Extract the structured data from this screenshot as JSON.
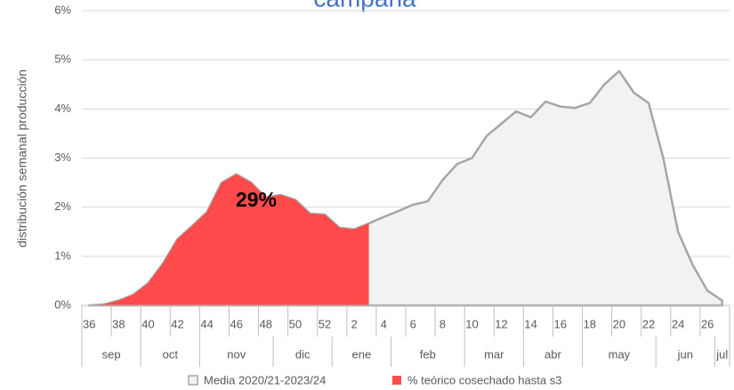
{
  "chart_data": {
    "type": "area",
    "title": "campaña",
    "y_label": "distribución semanal producción",
    "categories": [
      "36",
      null,
      "38",
      null,
      "40",
      null,
      "42",
      null,
      "44",
      null,
      "46",
      null,
      "48",
      null,
      "50",
      null,
      "52",
      null,
      "2",
      null,
      "4",
      null,
      "6",
      null,
      "8",
      null,
      "10",
      null,
      "12",
      null,
      "14",
      null,
      "16",
      null,
      "18",
      null,
      "20",
      null,
      "22",
      null,
      "24",
      null,
      "26",
      null
    ],
    "months": [
      "sep",
      "oct",
      "nov",
      "dic",
      "ene",
      "feb",
      "mar",
      "abr",
      "may",
      "jun",
      "jul"
    ],
    "series": [
      {
        "name": "Media 2020/21-2023/24",
        "color": "#a6a6a6",
        "fill": "#f2f2f2",
        "values": [
          0,
          0.02,
          0.1,
          0.22,
          0.45,
          0.85,
          1.35,
          1.62,
          1.9,
          2.5,
          2.67,
          2.5,
          2.2,
          2.25,
          2.15,
          1.87,
          1.85,
          1.58,
          1.55,
          1.67,
          1.8,
          1.92,
          2.05,
          2.12,
          2.55,
          2.88,
          3.0,
          3.45,
          3.7,
          3.95,
          3.83,
          4.15,
          4.05,
          4.02,
          4.12,
          4.5,
          4.77,
          4.33,
          4.12,
          3.0,
          1.5,
          0.82,
          0.3,
          0.1
        ]
      },
      {
        "name": "% teórico cosechado hasta s3",
        "color": "#ff4b4b",
        "fill": "#ff4b4b",
        "values": [
          0,
          0.02,
          0.1,
          0.22,
          0.45,
          0.85,
          1.35,
          1.62,
          1.9,
          2.5,
          2.67,
          2.5,
          2.2,
          2.25,
          2.15,
          1.87,
          1.85,
          1.58,
          1.55,
          1.67,
          null,
          null,
          null,
          null,
          null,
          null,
          null,
          null,
          null,
          null,
          null,
          null,
          null,
          null,
          null,
          null,
          null,
          null,
          null,
          null,
          null,
          null,
          null,
          null
        ]
      }
    ],
    "annotations": [
      {
        "text": "29%"
      }
    ],
    "ylim": [
      0,
      6
    ],
    "yticks": [
      {
        "value": 0,
        "label": "0%"
      },
      {
        "value": 1,
        "label": "1%"
      },
      {
        "value": 2,
        "label": "2%"
      },
      {
        "value": 3,
        "label": "3%"
      },
      {
        "value": 4,
        "label": "4%"
      },
      {
        "value": 5,
        "label": "5%"
      },
      {
        "value": 6,
        "label": "6%"
      }
    ],
    "grid": true
  }
}
